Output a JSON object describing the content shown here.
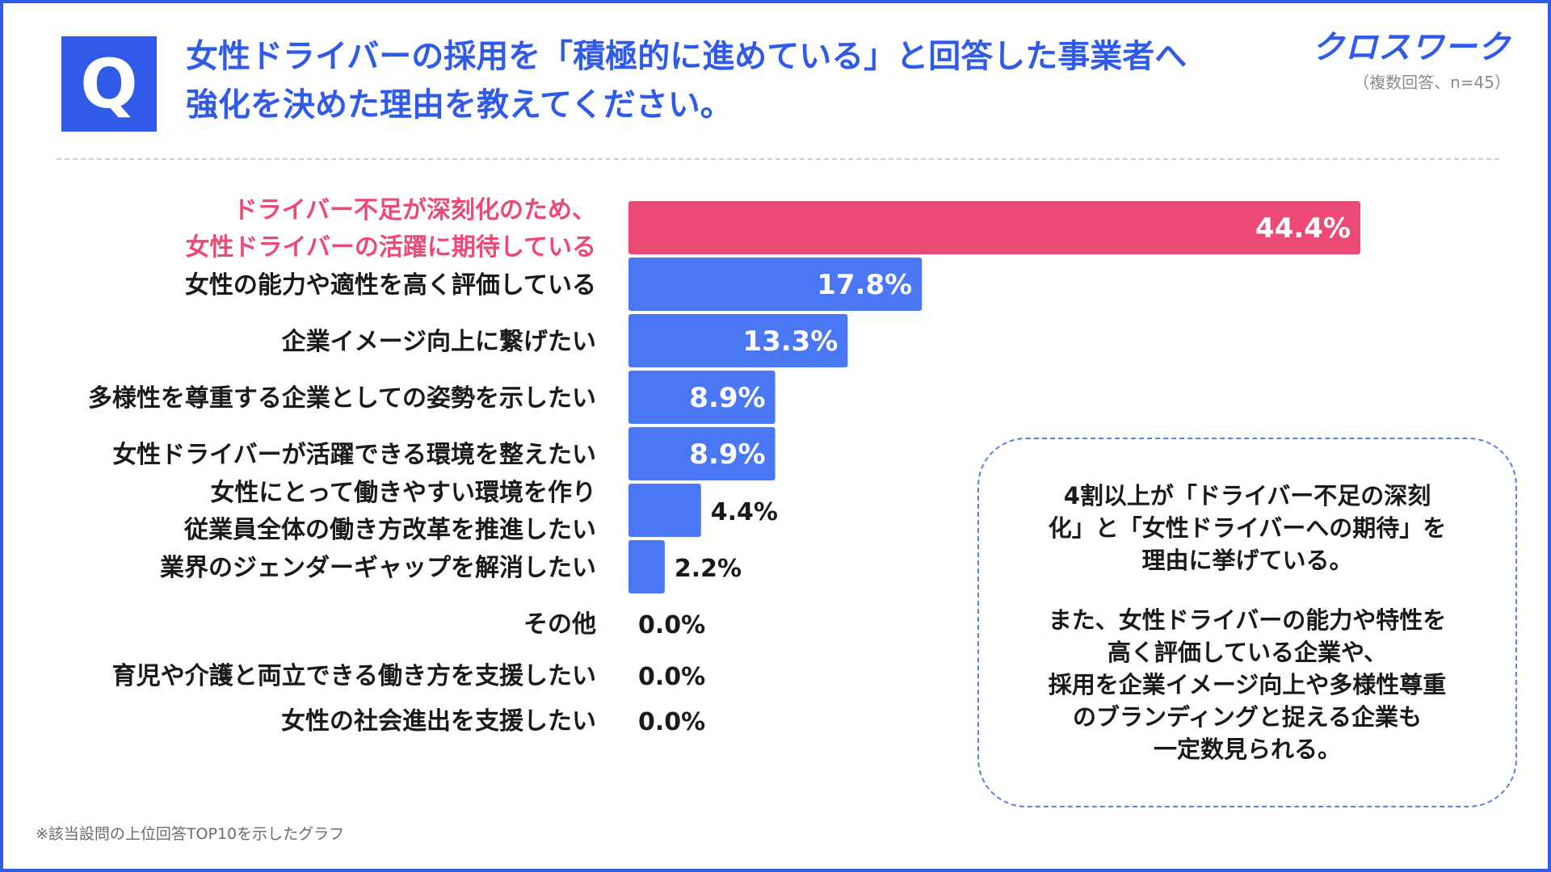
{
  "header": {
    "q_mark": "Q",
    "question_line1": "女性ドライバーの採用を「積極的に進めている」と回答した事業者へ",
    "question_line2": "強化を決めた理由を教えてください。",
    "logo": "クロスワーク",
    "sample_note": "（複数回答、n=45）"
  },
  "summary": {
    "para1_line1": "4割以上が「ドライバー不足の深刻",
    "para1_line2": "化」と「女性ドライバーへの期待」を",
    "para1_line3": "理由に挙げている。",
    "para2_line1": "また、女性ドライバーの能力や特性を",
    "para2_line2": "高く評価している企業や、",
    "para2_line3": "採用を企業イメージ向上や多様性尊重",
    "para2_line4": "のブランディングと捉える企業も",
    "para2_line5": "一定数見られる。"
  },
  "footnote": "※該当設問の上位回答TOP10を示したグラフ",
  "colors": {
    "primary": "#4a78f5",
    "highlight": "#ea4a74",
    "brand": "#2f5be8"
  },
  "chart_data": {
    "type": "bar",
    "orientation": "horizontal",
    "title": "",
    "xlabel": "",
    "ylabel": "",
    "xlim": [
      0,
      50
    ],
    "unit": "%",
    "categories": [
      [
        "ドライバー不足が深刻化のため、",
        "女性ドライバーの活躍に期待している"
      ],
      [
        "女性の能力や適性を高く評価している"
      ],
      [
        "企業イメージ向上に繋げたい"
      ],
      [
        "多様性を尊重する企業としての姿勢を示したい"
      ],
      [
        "女性ドライバーが活躍できる環境を整えたい"
      ],
      [
        "女性にとって働きやすい環境を作り",
        "従業員全体の働き方改革を推進したい"
      ],
      [
        "業界のジェンダーギャップを解消したい"
      ],
      [
        "その他"
      ],
      [
        "育児や介護と両立できる働き方を支援したい"
      ],
      [
        "女性の社会進出を支援したい"
      ]
    ],
    "values": [
      44.4,
      17.8,
      13.3,
      8.9,
      8.9,
      4.4,
      2.2,
      0.0,
      0.0,
      0.0
    ],
    "value_labels": [
      "44.4%",
      "17.8%",
      "13.3%",
      "8.9%",
      "8.9%",
      "4.4%",
      "2.2%",
      "0.0%",
      "0.0%",
      "0.0%"
    ],
    "highlight_index": 0
  }
}
